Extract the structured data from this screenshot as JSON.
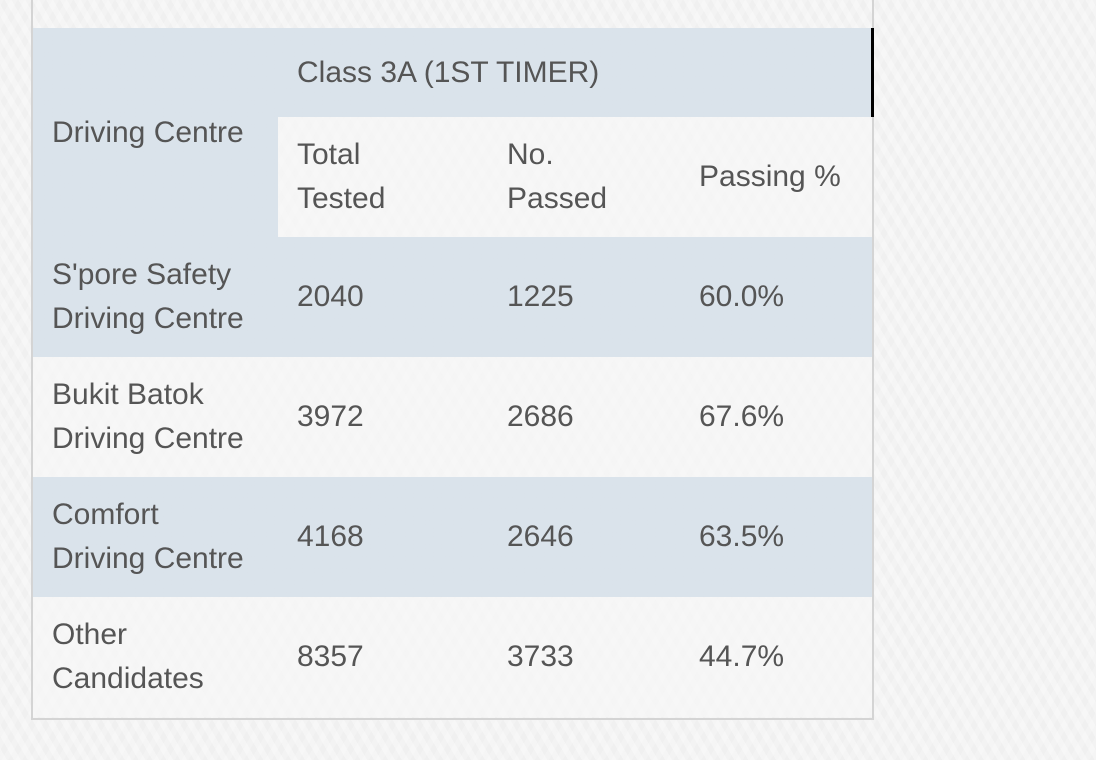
{
  "table": {
    "corner_header": "Driving Centre",
    "group_header": "Class 3A (1ST TIMER)",
    "columns": [
      "Total\nTested",
      "No.\nPassed",
      "Passing %"
    ],
    "column_lines": [
      [
        "Total",
        "Tested"
      ],
      [
        "No.",
        "Passed"
      ],
      [
        "Passing %"
      ]
    ],
    "rows": [
      {
        "centre": [
          "S'pore Safety",
          "Driving Centre"
        ],
        "total_tested": "2040",
        "no_passed": "1225",
        "passing_pct": "60.0%"
      },
      {
        "centre": [
          "Bukit Batok",
          "Driving Centre"
        ],
        "total_tested": "3972",
        "no_passed": "2686",
        "passing_pct": "67.6%"
      },
      {
        "centre": [
          "Comfort",
          "Driving Centre"
        ],
        "total_tested": "4168",
        "no_passed": "2646",
        "passing_pct": "63.5%"
      },
      {
        "centre": [
          "Other",
          "Candidates"
        ],
        "total_tested": "8357",
        "no_passed": "3733",
        "passing_pct": "44.7%"
      }
    ]
  },
  "colors": {
    "header_band": "#d9e1e8",
    "alt_row": "#f4f4f4",
    "text": "#555555",
    "border": "#d4d4d4"
  }
}
